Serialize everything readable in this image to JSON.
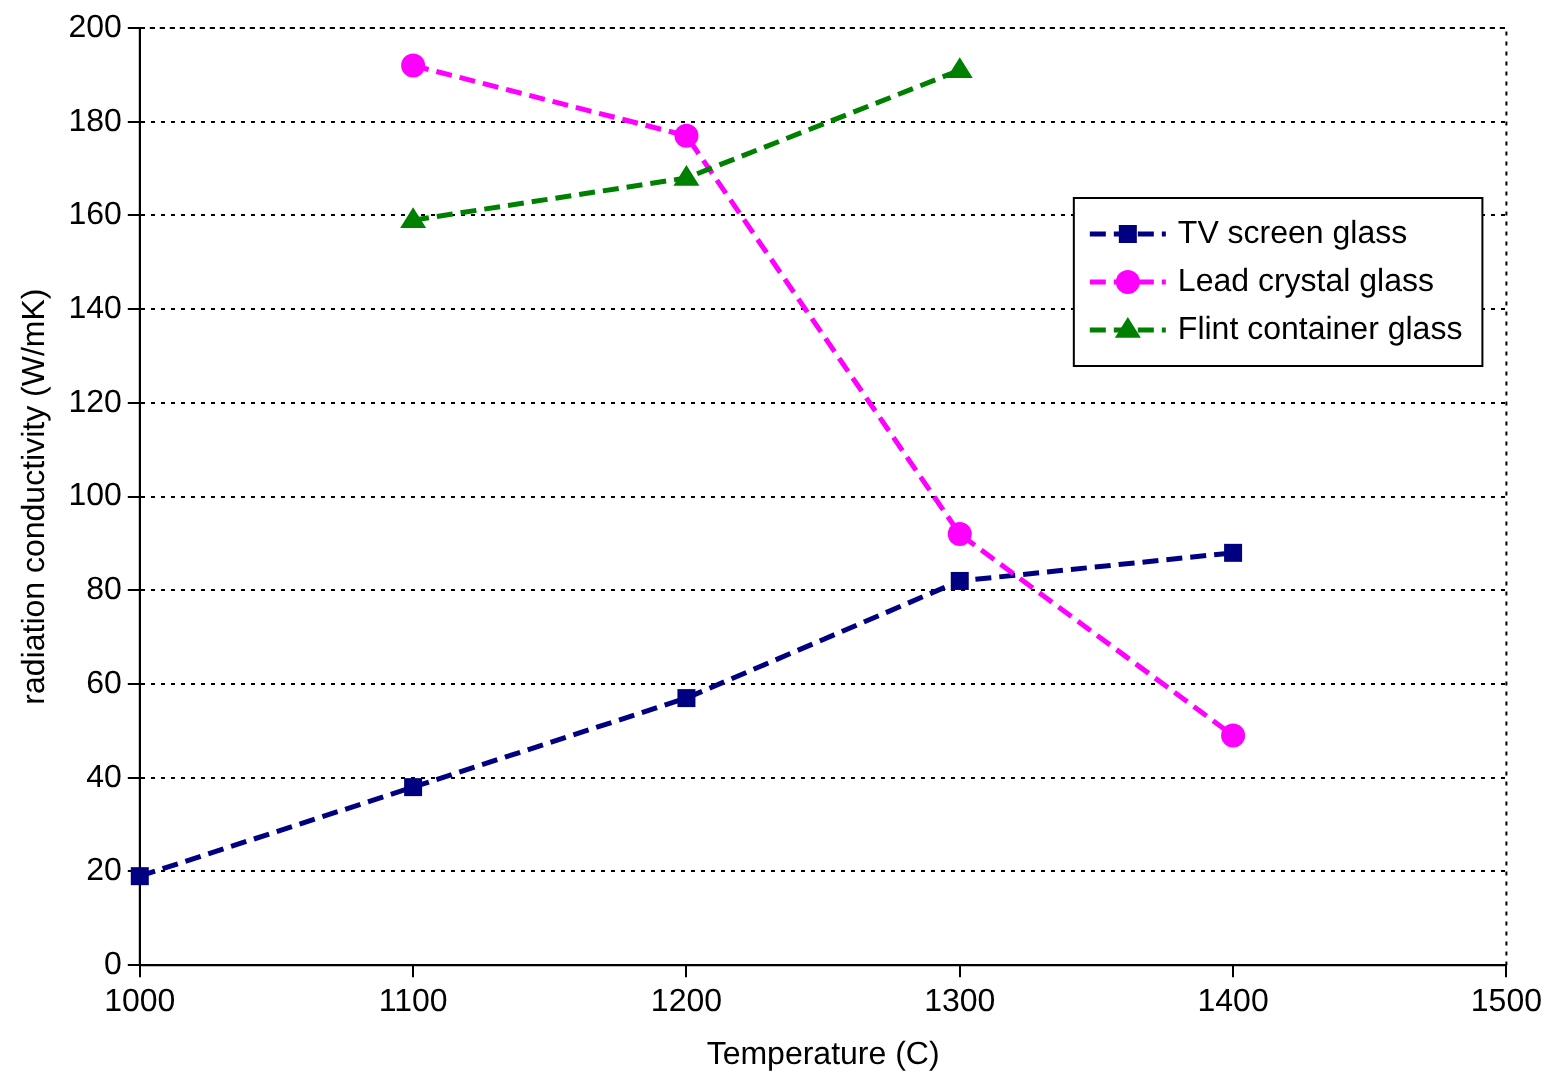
{
  "chart_data": {
    "type": "line",
    "xlabel": "Temperature (C)",
    "ylabel": "radiation conductivity (W/mK)",
    "xlim": [
      1000,
      1500
    ],
    "xticks": [
      1000,
      1100,
      1200,
      1300,
      1400,
      1500
    ],
    "ylim": [
      0,
      200
    ],
    "yticks": [
      0,
      20,
      40,
      60,
      80,
      100,
      120,
      140,
      160,
      180,
      200
    ],
    "grid": "y",
    "legend": "top right",
    "series": [
      {
        "name": "TV screen glass",
        "color": "#000080",
        "x": [
          1000,
          1100,
          1200,
          1300,
          1400
        ],
        "values": [
          19,
          38,
          57,
          82,
          88
        ],
        "marker": "square",
        "line_style": "dashed"
      },
      {
        "name": "Lead crystal glass",
        "color": "#ff00ff",
        "x": [
          1100,
          1200,
          1300,
          1400
        ],
        "values": [
          192,
          177,
          92,
          49
        ],
        "marker": "circle",
        "line_style": "dashed"
      },
      {
        "name": "Flint container glass",
        "color": "#008000",
        "x": [
          1100,
          1200,
          1300
        ],
        "values": [
          159,
          168,
          191
        ],
        "marker": "triangle",
        "line_style": "dashed"
      }
    ]
  }
}
